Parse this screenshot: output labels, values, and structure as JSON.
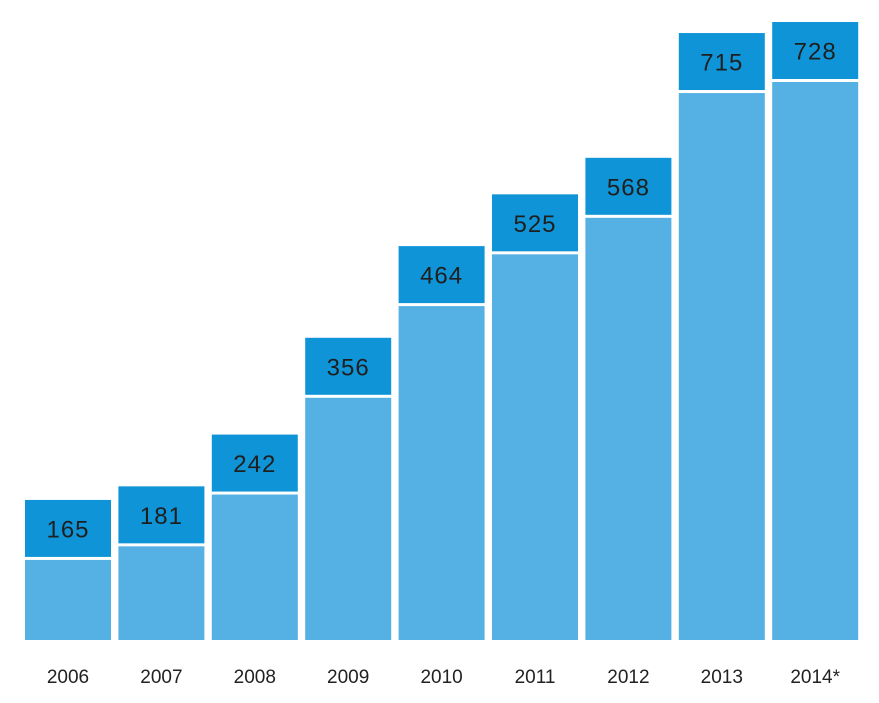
{
  "colors": {
    "bar": "#55b1e3",
    "value_cap": "#0f95d7",
    "value_text": "#1f1f1f",
    "tick_text": "#222222",
    "background": "#ffffff"
  },
  "chart_data": {
    "type": "bar",
    "title": "",
    "xlabel": "",
    "ylabel": "",
    "categories": [
      "2006",
      "2007",
      "2008",
      "2009",
      "2010",
      "2011",
      "2012",
      "2013",
      "2014*"
    ],
    "values": [
      165,
      181,
      242,
      356,
      464,
      525,
      568,
      715,
      728
    ],
    "data_labels": [
      "165",
      "181",
      "242",
      "356",
      "464",
      "525",
      "568",
      "715",
      "728"
    ],
    "ylim": [
      0,
      728
    ],
    "grid": false,
    "legend": "none"
  }
}
